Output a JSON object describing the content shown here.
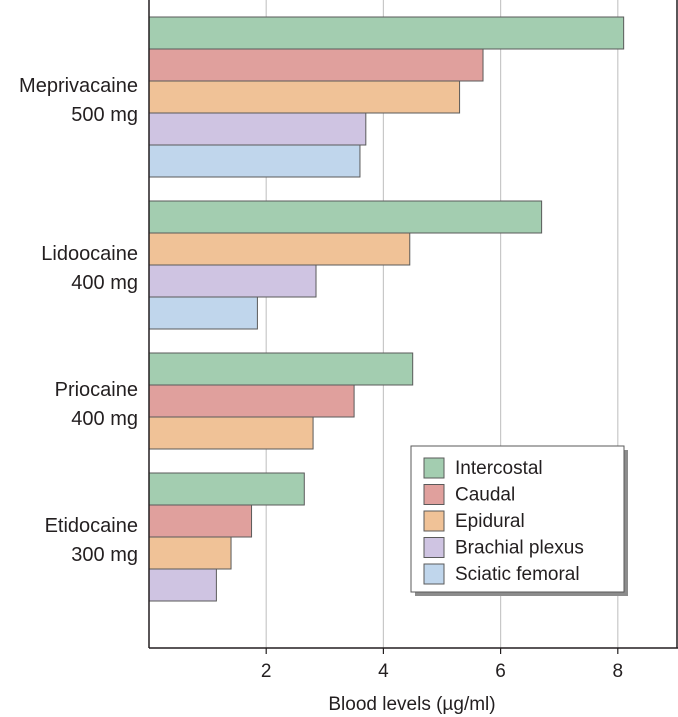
{
  "chart_data": {
    "type": "bar",
    "orientation": "horizontal",
    "xlabel": "Blood levels (µg/ml)",
    "ylabel": "",
    "title": "",
    "xlim": [
      0,
      9.1
    ],
    "xticks": [
      2,
      4,
      6,
      8
    ],
    "grid": "vertical",
    "legend_position": "bottom-right",
    "categories": [
      {
        "name": "Meprivacaine",
        "dose": "500 mg"
      },
      {
        "name": "Lidoocaine",
        "dose": "400 mg"
      },
      {
        "name": "Priocaine",
        "dose": "400 mg"
      },
      {
        "name": "Etidocaine",
        "dose": "300 mg"
      }
    ],
    "series": [
      {
        "name": "Intercostal",
        "color": "#a3cdb0",
        "values": [
          8.1,
          6.7,
          4.5,
          2.65
        ]
      },
      {
        "name": "Caudal",
        "color": "#e0a09d",
        "values": [
          5.7,
          null,
          3.5,
          1.75
        ]
      },
      {
        "name": "Epidural",
        "color": "#f0c297",
        "values": [
          5.3,
          4.45,
          2.8,
          1.4
        ]
      },
      {
        "name": "Brachial plexus",
        "color": "#cfc4e2",
        "values": [
          3.7,
          2.85,
          null,
          1.15
        ]
      },
      {
        "name": "Sciatic femoral",
        "color": "#c0d6ec",
        "values": [
          3.6,
          1.85,
          null,
          null
        ]
      }
    ]
  }
}
